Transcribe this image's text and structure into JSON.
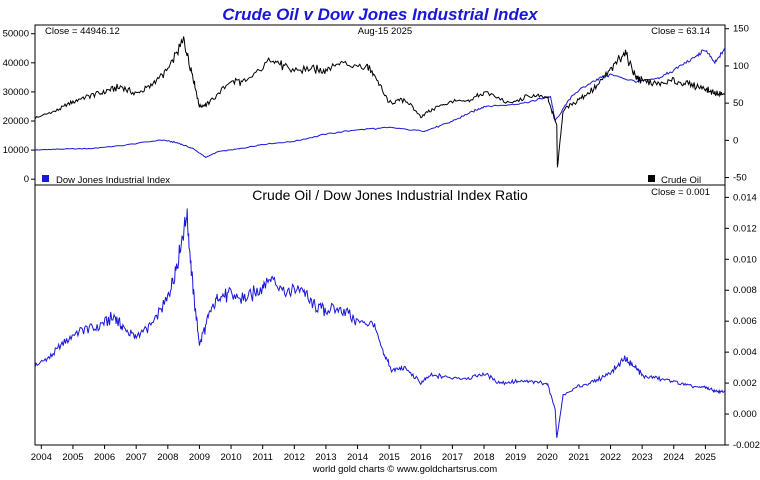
{
  "chart_data": [
    {
      "type": "line",
      "title": "Crude Oil v Dow Jones Industrial Index",
      "header_left": "Close = 44946.12",
      "header_center": "Aug-15  2025",
      "header_right": "Close = 63.14",
      "left_axis": {
        "ylim": [
          -2000,
          53000
        ],
        "ticks": [
          "0",
          "10000",
          "20000",
          "30000",
          "40000",
          "50000"
        ],
        "tick_values": [
          0,
          10000,
          20000,
          30000,
          40000,
          50000
        ]
      },
      "right_axis": {
        "ylim": [
          -60,
          155
        ],
        "ticks": [
          "-50",
          "0",
          "50",
          "100",
          "150"
        ],
        "tick_values": [
          -50,
          0,
          50,
          100,
          150
        ]
      },
      "series": [
        {
          "name": "Dow Jones Industrial Index",
          "color": "#1a17d8",
          "axis": "left",
          "x": [
            2003.8,
            2004.5,
            2005.5,
            2006.5,
            2007.8,
            2008.3,
            2008.8,
            2009.2,
            2009.6,
            2010.3,
            2011.0,
            2012.0,
            2013.0,
            2014.0,
            2015.0,
            2016.1,
            2016.8,
            2017.5,
            2018.0,
            2018.8,
            2019.5,
            2020.1,
            2020.25,
            2020.8,
            2021.5,
            2022.0,
            2022.8,
            2023.5,
            2024.0,
            2024.6,
            2025.0,
            2025.3,
            2025.62
          ],
          "y": [
            10000,
            10300,
            10500,
            11500,
            13500,
            12500,
            10500,
            7500,
            9500,
            10500,
            12000,
            13000,
            15500,
            17000,
            17700,
            16500,
            19000,
            22500,
            25000,
            25500,
            26800,
            28500,
            20000,
            29000,
            34000,
            36000,
            33500,
            34500,
            37500,
            41500,
            44500,
            40000,
            44946
          ]
        },
        {
          "name": "Crude Oil",
          "color": "#000000",
          "axis": "right",
          "x": [
            2003.8,
            2004.5,
            2005.0,
            2005.5,
            2006.0,
            2006.5,
            2007.0,
            2007.5,
            2008.0,
            2008.5,
            2008.8,
            2009.0,
            2009.3,
            2010.0,
            2010.5,
            2011.3,
            2011.8,
            2012.5,
            2013.0,
            2013.5,
            2014.3,
            2014.5,
            2015.0,
            2015.5,
            2016.0,
            2016.5,
            2017.0,
            2017.5,
            2018.0,
            2018.8,
            2019.5,
            2020.0,
            2020.3,
            2020.32,
            2020.5,
            2021.0,
            2021.5,
            2022.0,
            2022.45,
            2022.8,
            2023.0,
            2023.5,
            2024.0,
            2024.5,
            2025.0,
            2025.3,
            2025.62
          ],
          "y": [
            30,
            40,
            52,
            60,
            65,
            72,
            62,
            75,
            95,
            135,
            85,
            45,
            50,
            80,
            78,
            110,
            95,
            95,
            95,
            105,
            100,
            90,
            50,
            55,
            32,
            45,
            52,
            52,
            65,
            50,
            60,
            58,
            20,
            -37,
            40,
            55,
            70,
            95,
            120,
            85,
            80,
            75,
            80,
            75,
            70,
            63,
            63
          ]
        }
      ],
      "legend": [
        "Dow Jones Industrial Index",
        "Crude Oil"
      ]
    },
    {
      "type": "line",
      "title": "Crude Oil  /  Dow Jones Industrial Index Ratio",
      "header_right": "Close = 0.001",
      "right_axis": {
        "ylim": [
          -0.002,
          0.0148
        ],
        "ticks": [
          "-0.002",
          "0.000",
          "0.002",
          "0.004",
          "0.006",
          "0.008",
          "0.010",
          "0.012",
          "0.014"
        ],
        "tick_values": [
          -0.002,
          0,
          0.002,
          0.004,
          0.006,
          0.008,
          0.01,
          0.012,
          0.014
        ]
      },
      "series": [
        {
          "color": "#1a17d8",
          "x": [
            2003.8,
            2004.3,
            2004.8,
            2005.3,
            2005.8,
            2006.3,
            2006.6,
            2007.0,
            2007.5,
            2008.0,
            2008.3,
            2008.6,
            2008.8,
            2009.0,
            2009.3,
            2009.6,
            2010.0,
            2010.5,
            2011.0,
            2011.3,
            2011.8,
            2012.2,
            2012.6,
            2013.0,
            2013.5,
            2014.0,
            2014.5,
            2014.8,
            2015.1,
            2015.5,
            2016.0,
            2016.3,
            2016.8,
            2017.5,
            2018.0,
            2018.5,
            2019.0,
            2019.5,
            2020.0,
            2020.25,
            2020.3,
            2020.5,
            2021.0,
            2021.5,
            2022.0,
            2022.45,
            2022.8,
            2023.0,
            2023.5,
            2024.0,
            2024.5,
            2025.0,
            2025.3,
            2025.62
          ],
          "y": [
            0.0031,
            0.0037,
            0.0048,
            0.0055,
            0.0056,
            0.0063,
            0.0055,
            0.005,
            0.0058,
            0.0075,
            0.0098,
            0.0129,
            0.008,
            0.0045,
            0.0063,
            0.0076,
            0.0077,
            0.0074,
            0.0083,
            0.0088,
            0.0079,
            0.0082,
            0.007,
            0.0067,
            0.0068,
            0.006,
            0.0058,
            0.004,
            0.0028,
            0.003,
            0.002,
            0.0025,
            0.0024,
            0.0023,
            0.0026,
            0.002,
            0.0021,
            0.0021,
            0.002,
            0.0003,
            -0.0016,
            0.0012,
            0.0018,
            0.0021,
            0.0027,
            0.0036,
            0.003,
            0.0025,
            0.0023,
            0.0021,
            0.0018,
            0.0017,
            0.0015,
            0.0014
          ]
        }
      ]
    }
  ],
  "x_axis": {
    "xlim": [
      2003.8,
      2025.62
    ],
    "ticks": [
      "2004",
      "2005",
      "2006",
      "2007",
      "2008",
      "2009",
      "2010",
      "2011",
      "2012",
      "2013",
      "2014",
      "2015",
      "2016",
      "2017",
      "2018",
      "2019",
      "2020",
      "2021",
      "2022",
      "2023",
      "2024",
      "2025"
    ],
    "tick_values": [
      2004,
      2005,
      2006,
      2007,
      2008,
      2009,
      2010,
      2011,
      2012,
      2013,
      2014,
      2015,
      2016,
      2017,
      2018,
      2019,
      2020,
      2021,
      2022,
      2023,
      2024,
      2025
    ]
  },
  "footer": "world gold charts © www.goldchartsrus.com"
}
